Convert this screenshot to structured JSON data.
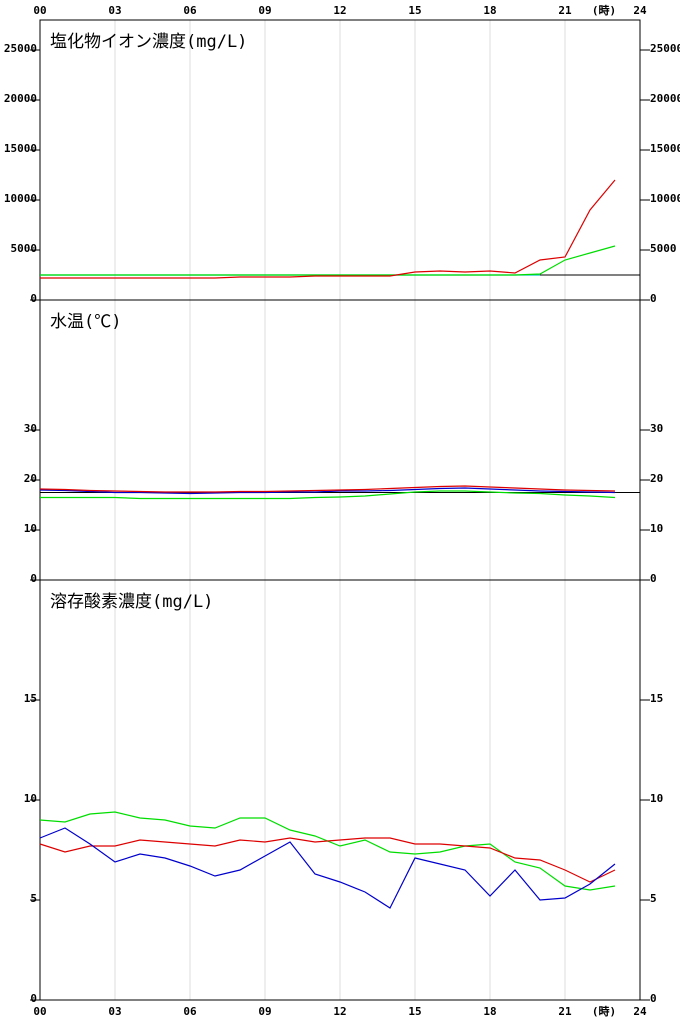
{
  "x_axis": {
    "xlim": [
      0,
      24
    ],
    "xticks": [
      {
        "value": 0,
        "label": "00"
      },
      {
        "value": 3,
        "label": "03"
      },
      {
        "value": 6,
        "label": "06"
      },
      {
        "value": 9,
        "label": "09"
      },
      12,
      15,
      18,
      21,
      24
    ],
    "unit_label": "(時)"
  },
  "chart_data": [
    {
      "type": "line",
      "title": "塩化物イオン濃度(mg/L)",
      "ylim": [
        0,
        28000
      ],
      "yticks": [
        0,
        5000,
        10000,
        15000,
        20000,
        25000
      ],
      "hline": 2500,
      "x": [
        0,
        1,
        2,
        3,
        4,
        5,
        6,
        7,
        8,
        9,
        10,
        11,
        12,
        13,
        14,
        15,
        16,
        17,
        18,
        19,
        20,
        21,
        22,
        23
      ],
      "series": [
        {
          "color": "#00c0c0",
          "values": [
            2500,
            2500,
            2500,
            2500,
            2500,
            2500,
            2500,
            2500,
            2500,
            2500,
            2500,
            2500,
            2500,
            2500,
            2500,
            2500,
            2500,
            2500,
            2500,
            2500,
            2500,
            null,
            null,
            null
          ]
        },
        {
          "color": "#00dd00",
          "values": [
            2500,
            2500,
            2500,
            2500,
            2500,
            2500,
            2500,
            2500,
            2500,
            2500,
            2500,
            2500,
            2500,
            2500,
            2500,
            2500,
            2500,
            2500,
            2500,
            2500,
            2600,
            4000,
            4700,
            5400
          ]
        },
        {
          "color": "#dd0000",
          "values": [
            2200,
            2200,
            2200,
            2200,
            2200,
            2200,
            2200,
            2200,
            2300,
            2300,
            2300,
            2400,
            2400,
            2400,
            2400,
            2800,
            2900,
            2800,
            2900,
            2700,
            4000,
            4300,
            9000,
            12000
          ]
        }
      ]
    },
    {
      "type": "line",
      "title": "水温(℃)",
      "ylim": [
        0,
        56
      ],
      "yticks": [
        0,
        10,
        20,
        30
      ],
      "hline": 17.5,
      "x": [
        0,
        1,
        2,
        3,
        4,
        5,
        6,
        7,
        8,
        9,
        10,
        11,
        12,
        13,
        14,
        15,
        16,
        17,
        18,
        19,
        20,
        21,
        22,
        23
      ],
      "series": [
        {
          "color": "#00dd00",
          "values": [
            16.5,
            16.5,
            16.5,
            16.5,
            16.3,
            16.3,
            16.3,
            16.3,
            16.3,
            16.3,
            16.3,
            16.5,
            16.6,
            16.8,
            17.2,
            17.6,
            17.8,
            17.8,
            17.6,
            17.4,
            17.3,
            17.0,
            16.8,
            16.5
          ]
        },
        {
          "color": "#0000cc",
          "values": [
            18.0,
            17.9,
            17.7,
            17.5,
            17.5,
            17.4,
            17.3,
            17.4,
            17.5,
            17.5,
            17.6,
            17.6,
            17.8,
            17.8,
            17.9,
            18.1,
            18.3,
            18.4,
            18.2,
            18.0,
            17.8,
            17.7,
            17.6,
            17.5
          ]
        },
        {
          "color": "#dd0000",
          "values": [
            18.2,
            18.1,
            17.9,
            17.8,
            17.7,
            17.6,
            17.6,
            17.6,
            17.7,
            17.7,
            17.8,
            17.9,
            18.0,
            18.1,
            18.3,
            18.5,
            18.7,
            18.8,
            18.6,
            18.4,
            18.2,
            18.0,
            17.9,
            17.8
          ]
        }
      ]
    },
    {
      "type": "line",
      "title": "溶存酸素濃度(mg/L)",
      "ylim": [
        0,
        21
      ],
      "yticks": [
        0,
        5,
        10,
        15
      ],
      "x": [
        0,
        1,
        2,
        3,
        4,
        5,
        6,
        7,
        8,
        9,
        10,
        11,
        12,
        13,
        14,
        15,
        16,
        17,
        18,
        19,
        20,
        21,
        22,
        23
      ],
      "series": [
        {
          "color": "#00dd00",
          "values": [
            9.0,
            8.9,
            9.3,
            9.4,
            9.1,
            9.0,
            8.7,
            8.6,
            9.1,
            9.1,
            8.5,
            8.2,
            7.7,
            8.0,
            7.4,
            7.3,
            7.4,
            7.7,
            7.8,
            6.9,
            6.6,
            5.7,
            5.5,
            5.7
          ]
        },
        {
          "color": "#dd0000",
          "values": [
            7.8,
            7.4,
            7.7,
            7.7,
            8.0,
            7.9,
            7.8,
            7.7,
            8.0,
            7.9,
            8.1,
            7.9,
            8.0,
            8.1,
            8.1,
            7.8,
            7.8,
            7.7,
            7.6,
            7.1,
            7.0,
            6.5,
            5.9,
            6.5
          ]
        },
        {
          "color": "#0000cc",
          "values": [
            8.1,
            8.6,
            7.8,
            6.9,
            7.3,
            7.1,
            6.7,
            6.2,
            6.5,
            7.2,
            7.9,
            6.3,
            5.9,
            5.4,
            4.6,
            7.1,
            6.8,
            6.5,
            5.2,
            6.5,
            5.0,
            5.1,
            5.8,
            6.8
          ]
        }
      ]
    }
  ]
}
